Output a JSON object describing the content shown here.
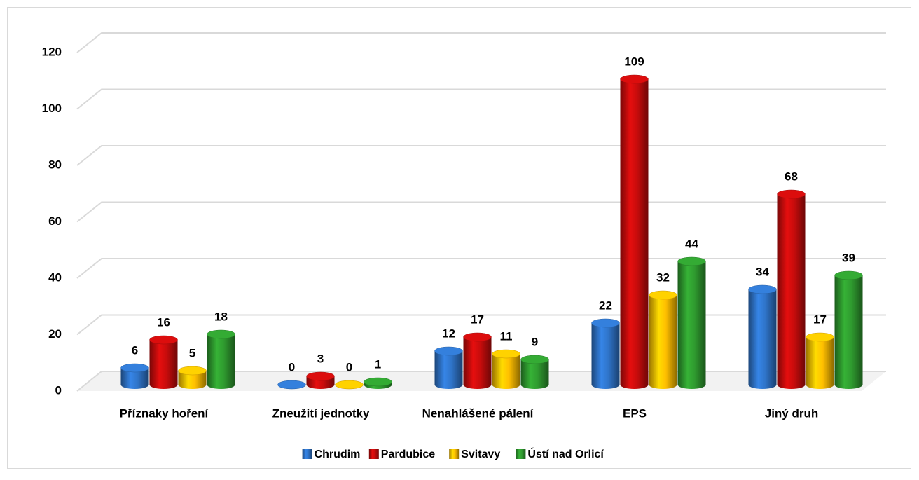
{
  "chart_data": {
    "type": "bar3d",
    "categories": [
      "Příznaky hoření",
      "Zneužití jednotky",
      "Nenahlášené pálení",
      "EPS",
      "Jiný druh"
    ],
    "series": [
      {
        "name": "Chrudim",
        "color": "#2f74c9",
        "values": [
          6,
          0,
          12,
          22,
          34
        ]
      },
      {
        "name": "Pardubice",
        "color": "#c80c0c",
        "values": [
          16,
          3,
          17,
          109,
          68
        ]
      },
      {
        "name": "Svitavy",
        "color": "#ffbf00",
        "values": [
          5,
          0,
          11,
          32,
          17
        ]
      },
      {
        "name": "Ústí nad Orlicí",
        "color": "#2f9b2f",
        "values": [
          18,
          1,
          9,
          44,
          39
        ]
      }
    ],
    "ylim": [
      0,
      120
    ],
    "yticks": [
      0,
      20,
      40,
      60,
      80,
      100,
      120
    ],
    "grid": true,
    "legend": "bottom"
  }
}
